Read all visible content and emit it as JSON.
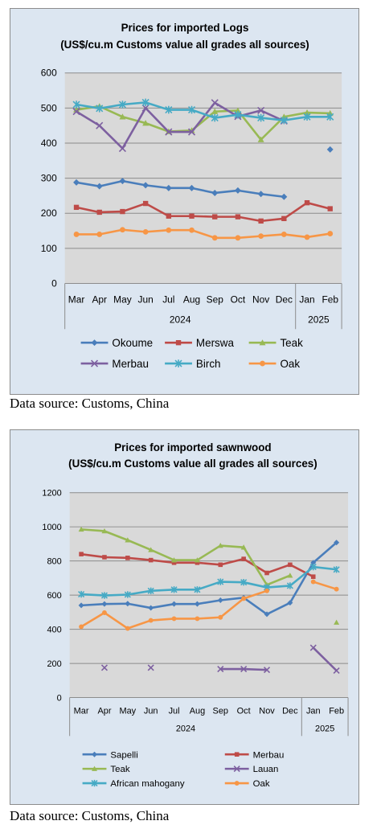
{
  "chart_data": [
    {
      "type": "line",
      "title": "Prices for imported Logs",
      "subtitle": "(US$/cu.m Customs value all grades all sources)",
      "categories": [
        "Mar",
        "Apr",
        "May",
        "Jun",
        "Jul",
        "Aug",
        "Sep",
        "Oct",
        "Nov",
        "Dec",
        "Jan",
        "Feb"
      ],
      "year_groups": [
        {
          "label": "2024",
          "start": 0,
          "end": 9
        },
        {
          "label": "2025",
          "start": 10,
          "end": 11
        }
      ],
      "ylim": [
        0,
        600
      ],
      "yticks": [
        0,
        100,
        200,
        300,
        400,
        500,
        600
      ],
      "grid": true,
      "legend_position": "bottom",
      "series": [
        {
          "name": "Okoume",
          "color": "#4a7ebb",
          "marker": "diamond",
          "values": [
            288,
            277,
            292,
            280,
            272,
            272,
            258,
            265,
            255,
            247,
            null,
            382
          ]
        },
        {
          "name": "Merswa",
          "color": "#be4b48",
          "marker": "square",
          "values": [
            217,
            203,
            205,
            228,
            192,
            192,
            190,
            190,
            178,
            185,
            230,
            213
          ]
        },
        {
          "name": "Teak",
          "color": "#98b954",
          "marker": "triangle",
          "values": [
            495,
            505,
            475,
            457,
            433,
            436,
            490,
            493,
            410,
            475,
            487,
            485
          ]
        },
        {
          "name": "Merbau",
          "color": "#7d60a0",
          "marker": "x",
          "values": [
            490,
            450,
            385,
            500,
            432,
            432,
            515,
            476,
            493,
            463,
            null,
            null
          ]
        },
        {
          "name": "Birch",
          "color": "#46aac5",
          "marker": "star",
          "values": [
            510,
            499,
            510,
            516,
            495,
            495,
            472,
            481,
            472,
            465,
            475,
            475
          ]
        },
        {
          "name": "Oak",
          "color": "#f79646",
          "marker": "circle",
          "values": [
            140,
            140,
            153,
            147,
            152,
            152,
            130,
            130,
            135,
            140,
            132,
            142
          ]
        }
      ]
    },
    {
      "type": "line",
      "title": "Prices for imported sawnwood",
      "subtitle": "(US$/cu.m Customs value all grades all sources)",
      "categories": [
        "Mar",
        "Apr",
        "May",
        "Jun",
        "Jul",
        "Aug",
        "Sep",
        "Oct",
        "Nov",
        "Dec",
        "Jan",
        "Feb"
      ],
      "year_groups": [
        {
          "label": "2024",
          "start": 0,
          "end": 9
        },
        {
          "label": "2025",
          "start": 10,
          "end": 11
        }
      ],
      "ylim": [
        0,
        1200
      ],
      "yticks": [
        0,
        200,
        400,
        600,
        800,
        1000,
        1200
      ],
      "grid": true,
      "legend_position": "bottom",
      "series": [
        {
          "name": "Sapelli",
          "color": "#4a7ebb",
          "marker": "diamond",
          "values": [
            540,
            548,
            550,
            525,
            548,
            548,
            570,
            585,
            488,
            555,
            790,
            908
          ]
        },
        {
          "name": "Merbau",
          "color": "#be4b48",
          "marker": "square",
          "values": [
            840,
            822,
            818,
            805,
            790,
            790,
            778,
            812,
            730,
            778,
            708,
            null
          ]
        },
        {
          "name": "Teak",
          "color": "#98b954",
          "marker": "triangle",
          "values": [
            985,
            975,
            922,
            865,
            805,
            805,
            890,
            880,
            660,
            715,
            null,
            440
          ]
        },
        {
          "name": "Lauan",
          "color": "#7d60a0",
          "marker": "x",
          "values": [
            null,
            175,
            null,
            175,
            null,
            null,
            167,
            167,
            162,
            null,
            292,
            158
          ]
        },
        {
          "name": "African mahogany",
          "color": "#46aac5",
          "marker": "star",
          "values": [
            605,
            598,
            603,
            625,
            632,
            632,
            678,
            675,
            645,
            655,
            765,
            750
          ]
        },
        {
          "name": "Oak",
          "color": "#f79646",
          "marker": "circle",
          "values": [
            415,
            497,
            405,
            452,
            462,
            462,
            470,
            580,
            625,
            null,
            678,
            635
          ]
        }
      ]
    }
  ],
  "captions": [
    "Data source: Customs, China",
    "Data source: Customs, China"
  ]
}
